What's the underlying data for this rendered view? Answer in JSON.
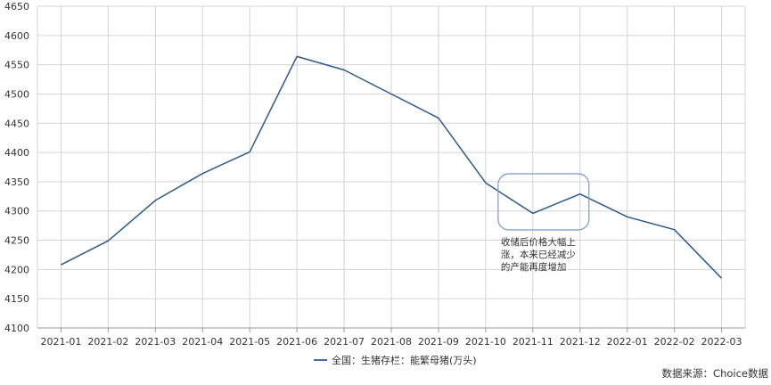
{
  "chart_data": {
    "type": "line",
    "title": "",
    "xlabel": "",
    "ylabel": "",
    "categories": [
      "2021-01",
      "2021-02",
      "2021-03",
      "2021-04",
      "2021-05",
      "2021-06",
      "2021-07",
      "2021-08",
      "2021-09",
      "2021-10",
      "2021-11",
      "2021-12",
      "2022-01",
      "2022-02",
      "2022-03"
    ],
    "series": [
      {
        "name": "全国：生猪存栏：能繁母猪(万头)",
        "color": "#2c5a8c",
        "values": [
          4208,
          4249,
          4318,
          4364,
          4401,
          4564,
          4541,
          4500,
          4459,
          4348,
          4296,
          4329,
          4290,
          4268,
          4185
        ]
      }
    ],
    "ylim": [
      4100,
      4650
    ],
    "yticks": [
      4100,
      4150,
      4200,
      4250,
      4300,
      4350,
      4400,
      4450,
      4500,
      4550,
      4600,
      4650
    ],
    "grid": true,
    "legend_position": "bottom-center",
    "annotation": {
      "lines": [
        "收储后价格大幅上",
        "涨，本来已经减少",
        "的产能再度增加"
      ],
      "range": [
        "2021-10",
        "2021-12"
      ]
    },
    "source": "数据来源：Choice数据"
  }
}
